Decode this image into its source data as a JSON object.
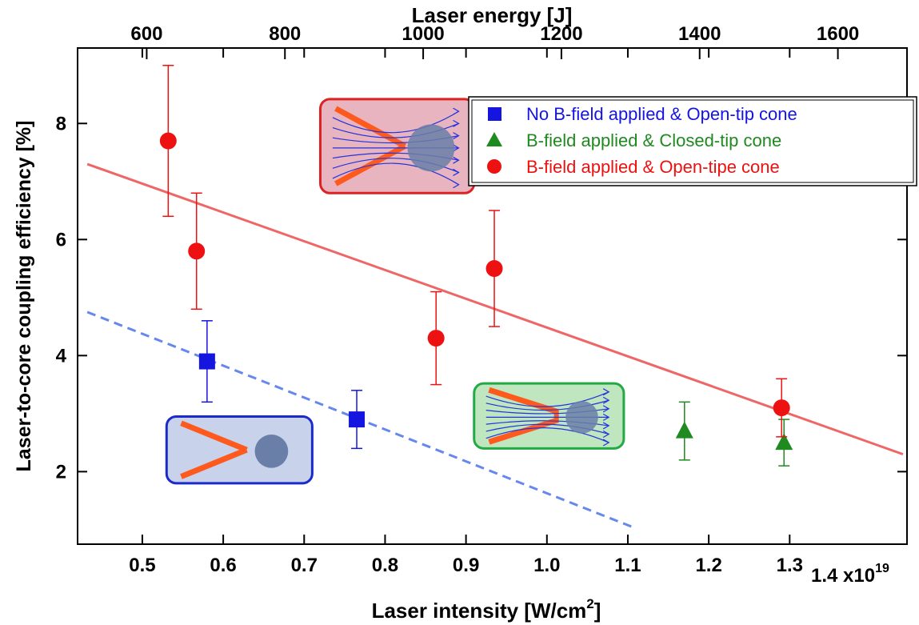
{
  "chart_data": {
    "type": "scatter",
    "title": "",
    "xlabel": "Laser intensity [W/cm",
    "xlabel_sup": "2",
    "xlabel_close": "]",
    "x2label": "Laser energy [J]",
    "ylabel": "Laser-to-core coupling efficiency [%]",
    "xlim": [
      0.42,
      1.445
    ],
    "ylim": [
      0.75,
      9.3
    ],
    "x2lim": [
      500,
      1700
    ],
    "x_ticks": [
      "0.5",
      "0.6",
      "0.7",
      "0.8",
      "0.9",
      "1.0",
      "1.1",
      "1.2",
      "1.3"
    ],
    "x_tick_values": [
      0.5,
      0.6,
      0.7,
      0.8,
      0.9,
      1.0,
      1.1,
      1.2,
      1.3
    ],
    "x_exponent_label": "1.4 x10",
    "x_exponent_sup": "19",
    "x2_ticks": [
      "600",
      "800",
      "1000",
      "1200",
      "1400",
      "1600"
    ],
    "x2_tick_values": [
      600,
      800,
      1000,
      1200,
      1400,
      1600
    ],
    "y_ticks": [
      "2",
      "4",
      "6",
      "8"
    ],
    "y_tick_values": [
      2,
      4,
      6,
      8
    ],
    "grid": false,
    "legend_position": "top-right",
    "series": [
      {
        "name": "No B-field applied & Open-tip cone",
        "color": "#1515e0",
        "marker": "square",
        "points": [
          {
            "x": 0.58,
            "y": 3.9,
            "yerr_low": 3.2,
            "yerr_high": 4.6
          },
          {
            "x": 0.765,
            "y": 2.9,
            "yerr_low": 2.4,
            "yerr_high": 3.4
          }
        ]
      },
      {
        "name": "B-field applied & Closed-tip cone",
        "color": "#1f8a1f",
        "marker": "triangle",
        "points": [
          {
            "x": 1.17,
            "y": 2.7,
            "yerr_low": 2.2,
            "yerr_high": 3.2
          },
          {
            "x": 1.293,
            "y": 2.5,
            "yerr_low": 2.1,
            "yerr_high": 2.9
          }
        ]
      },
      {
        "name": "B-field applied & Open-tipe cone",
        "color": "#ee1111",
        "marker": "circle",
        "points": [
          {
            "x": 0.532,
            "y": 7.7,
            "yerr_low": 6.4,
            "yerr_high": 9.0
          },
          {
            "x": 0.567,
            "y": 5.8,
            "yerr_low": 4.8,
            "yerr_high": 6.8
          },
          {
            "x": 0.863,
            "y": 4.3,
            "yerr_low": 3.5,
            "yerr_high": 5.1
          },
          {
            "x": 0.935,
            "y": 5.5,
            "yerr_low": 4.5,
            "yerr_high": 6.5
          },
          {
            "x": 1.29,
            "y": 3.1,
            "yerr_low": 2.6,
            "yerr_high": 3.6
          }
        ]
      }
    ],
    "fit_lines": [
      {
        "style": "solid",
        "color": "#ee6666",
        "x": [
          0.432,
          1.44
        ],
        "y": [
          7.3,
          2.3
        ]
      },
      {
        "style": "dashed",
        "color": "#6688ee",
        "x": [
          0.432,
          1.105
        ],
        "y": [
          4.75,
          1.05
        ]
      }
    ],
    "insets": [
      {
        "kind": "open-tip-with-field",
        "fill": "#e8b4c0",
        "border": "#dd2222",
        "anchor_x": 0.72,
        "anchor_y": 8.42,
        "anchor_x2": 0.91,
        "anchor_y2": 6.8
      },
      {
        "kind": "closed-tip-with-field",
        "fill": "#bfe6bf",
        "border": "#22aa44",
        "anchor_x": 0.91,
        "anchor_y": 3.52,
        "anchor_x2": 1.095,
        "anchor_y2": 2.4
      },
      {
        "kind": "open-tip-no-field",
        "fill": "#c8d2ea",
        "border": "#1a2acc",
        "anchor_x": 0.53,
        "anchor_y": 2.95,
        "anchor_x2": 0.71,
        "anchor_y2": 1.8
      }
    ]
  }
}
